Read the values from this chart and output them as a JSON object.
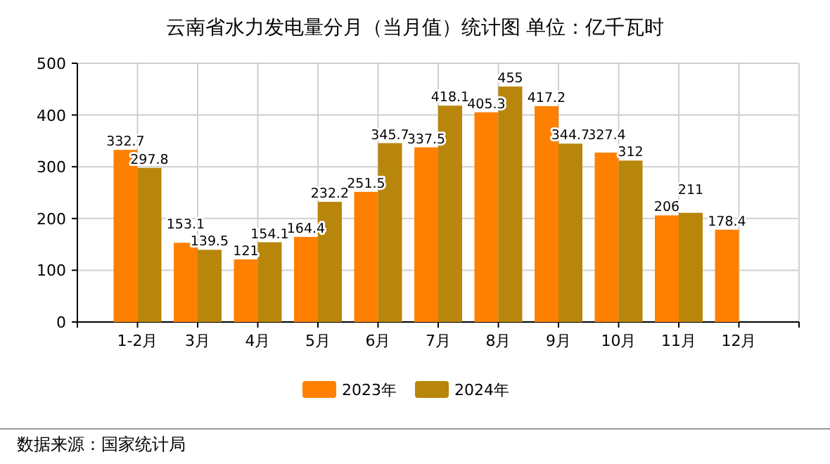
{
  "chart_data": {
    "type": "bar",
    "title": "云南省水力发电量分月（当月值）统计图 单位：亿千瓦时",
    "categories": [
      "1-2月",
      "3月",
      "4月",
      "5月",
      "6月",
      "7月",
      "8月",
      "9月",
      "10月",
      "11月",
      "12月"
    ],
    "series": [
      {
        "name": "2023年",
        "color": "#ff8000",
        "values": [
          332.7,
          153.1,
          121,
          164.4,
          251.5,
          337.5,
          405.3,
          417.2,
          327.4,
          206,
          178.4
        ]
      },
      {
        "name": "2024年",
        "color": "#b8860b",
        "values": [
          297.8,
          139.5,
          154.1,
          232.2,
          345.7,
          418.1,
          455,
          344.7,
          312,
          211,
          null
        ]
      }
    ],
    "ylim": [
      0,
      500
    ],
    "yticks": [
      0,
      100,
      200,
      300,
      400,
      500
    ],
    "grid": true,
    "legend": "bottom",
    "data_labels": true,
    "annotations": [
      "数据来源：国家统计局"
    ]
  }
}
